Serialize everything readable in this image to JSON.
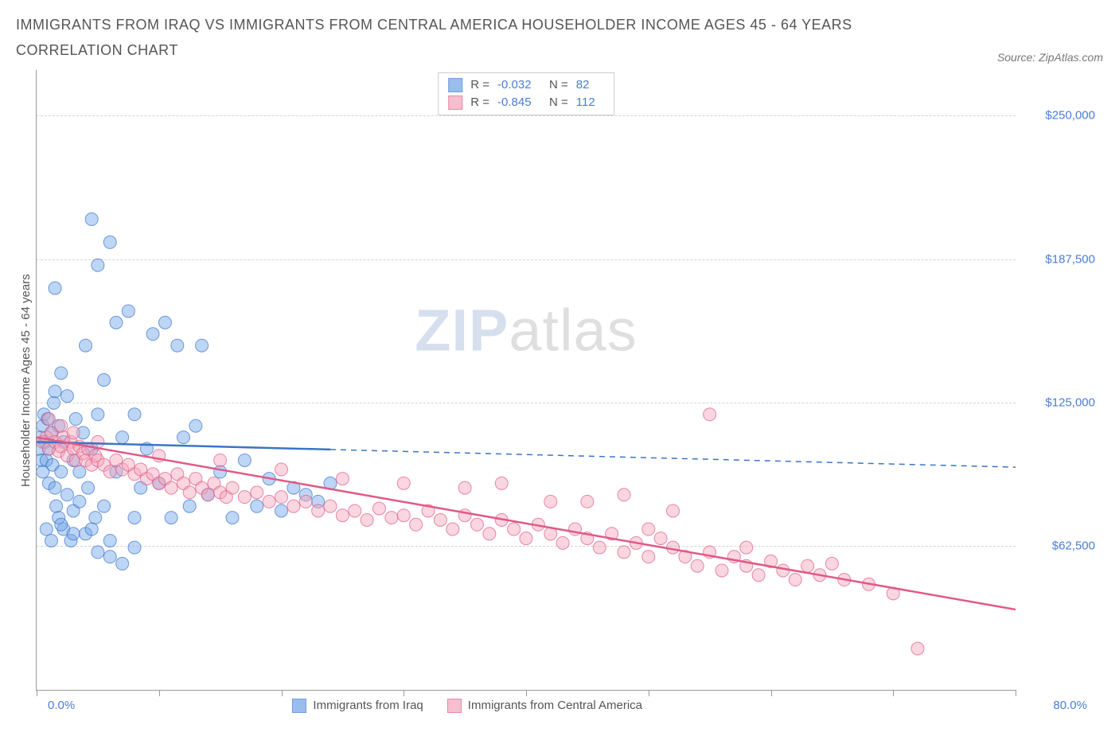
{
  "title": "IMMIGRANTS FROM IRAQ VS IMMIGRANTS FROM CENTRAL AMERICA HOUSEHOLDER INCOME AGES 45 - 64 YEARS CORRELATION CHART",
  "source": "Source: ZipAtlas.com",
  "ylabel": "Householder Income Ages 45 - 64 years",
  "watermark": {
    "bold": "ZIP",
    "rest": "atlas"
  },
  "chart": {
    "type": "scatter",
    "xlim": [
      0,
      80
    ],
    "ylim": [
      0,
      270000
    ],
    "xunit": "%",
    "yunit": "$",
    "xticks": [
      0,
      10,
      20,
      30,
      40,
      50,
      60,
      70,
      80
    ],
    "yticks": [
      62500,
      125000,
      187500,
      250000
    ],
    "ytick_labels": [
      "$62,500",
      "$125,000",
      "$187,500",
      "$250,000"
    ],
    "xmin_label": "0.0%",
    "xmax_label": "80.0%",
    "grid_color": "#d5d5d5",
    "axis_color": "#999999",
    "background": "#ffffff",
    "marker_radius": 8,
    "marker_opacity": 0.45,
    "series": [
      {
        "name": "Immigrants from Iraq",
        "color": "#6fa3e8",
        "stroke": "#3b74c9",
        "R": "-0.032",
        "N": "82",
        "trend": {
          "x1": 0,
          "y1": 108000,
          "x2": 80,
          "y2": 97000,
          "solid_until_x": 24,
          "width": 2.5
        },
        "points": [
          [
            0.2,
            105000
          ],
          [
            0.3,
            110000
          ],
          [
            0.4,
            100000
          ],
          [
            0.5,
            115000
          ],
          [
            0.5,
            95000
          ],
          [
            0.6,
            120000
          ],
          [
            0.7,
            108000
          ],
          [
            0.8,
            100000
          ],
          [
            0.9,
            118000
          ],
          [
            1.0,
            105000
          ],
          [
            1.0,
            90000
          ],
          [
            1.2,
            112000
          ],
          [
            1.3,
            98000
          ],
          [
            1.4,
            125000
          ],
          [
            1.5,
            88000
          ],
          [
            1.5,
            130000
          ],
          [
            1.6,
            80000
          ],
          [
            1.8,
            115000
          ],
          [
            1.8,
            75000
          ],
          [
            2.0,
            138000
          ],
          [
            2.0,
            95000
          ],
          [
            2.2,
            70000
          ],
          [
            2.2,
            108000
          ],
          [
            2.5,
            85000
          ],
          [
            2.5,
            128000
          ],
          [
            2.8,
            65000
          ],
          [
            3.0,
            100000
          ],
          [
            3.0,
            78000
          ],
          [
            3.2,
            118000
          ],
          [
            3.5,
            82000
          ],
          [
            3.5,
            95000
          ],
          [
            3.8,
            112000
          ],
          [
            4.0,
            68000
          ],
          [
            4.0,
            150000
          ],
          [
            4.2,
            88000
          ],
          [
            4.5,
            105000
          ],
          [
            4.5,
            205000
          ],
          [
            4.8,
            75000
          ],
          [
            5.0,
            120000
          ],
          [
            5.0,
            60000
          ],
          [
            5.5,
            135000
          ],
          [
            5.5,
            80000
          ],
          [
            6.0,
            65000
          ],
          [
            6.0,
            195000
          ],
          [
            6.5,
            95000
          ],
          [
            6.5,
            160000
          ],
          [
            7.0,
            110000
          ],
          [
            7.0,
            55000
          ],
          [
            7.5,
            165000
          ],
          [
            8.0,
            75000
          ],
          [
            8.0,
            120000
          ],
          [
            8.5,
            88000
          ],
          [
            9.0,
            105000
          ],
          [
            9.5,
            155000
          ],
          [
            10.0,
            90000
          ],
          [
            10.5,
            160000
          ],
          [
            11.0,
            75000
          ],
          [
            11.5,
            150000
          ],
          [
            12.0,
            110000
          ],
          [
            12.5,
            80000
          ],
          [
            13.0,
            115000
          ],
          [
            13.5,
            150000
          ],
          [
            14.0,
            85000
          ],
          [
            15.0,
            95000
          ],
          [
            16.0,
            75000
          ],
          [
            17.0,
            100000
          ],
          [
            18.0,
            80000
          ],
          [
            19.0,
            92000
          ],
          [
            20.0,
            78000
          ],
          [
            21.0,
            88000
          ],
          [
            22.0,
            85000
          ],
          [
            23.0,
            82000
          ],
          [
            24.0,
            90000
          ],
          [
            5.0,
            185000
          ],
          [
            1.5,
            175000
          ],
          [
            2.0,
            72000
          ],
          [
            3.0,
            68000
          ],
          [
            0.8,
            70000
          ],
          [
            1.2,
            65000
          ],
          [
            4.5,
            70000
          ],
          [
            6.0,
            58000
          ],
          [
            8.0,
            62000
          ]
        ]
      },
      {
        "name": "Immigrants from Central America",
        "color": "#f2a5bb",
        "stroke": "#e05a86",
        "R": "-0.845",
        "N": "112",
        "trend": {
          "x1": 0,
          "y1": 110000,
          "x2": 80,
          "y2": 35000,
          "solid_until_x": 80,
          "width": 2.5
        },
        "points": [
          [
            0.5,
            108000
          ],
          [
            0.8,
            110000
          ],
          [
            1.0,
            105000
          ],
          [
            1.2,
            112000
          ],
          [
            1.5,
            108000
          ],
          [
            1.8,
            104000
          ],
          [
            2.0,
            106000
          ],
          [
            2.2,
            110000
          ],
          [
            2.5,
            102000
          ],
          [
            2.8,
            108000
          ],
          [
            3.0,
            105000
          ],
          [
            3.2,
            100000
          ],
          [
            3.5,
            106000
          ],
          [
            3.8,
            103000
          ],
          [
            4.0,
            100000
          ],
          [
            4.2,
            105000
          ],
          [
            4.5,
            98000
          ],
          [
            4.8,
            102000
          ],
          [
            5.0,
            100000
          ],
          [
            5.5,
            98000
          ],
          [
            6.0,
            95000
          ],
          [
            6.5,
            100000
          ],
          [
            7.0,
            96000
          ],
          [
            7.5,
            98000
          ],
          [
            8.0,
            94000
          ],
          [
            8.5,
            96000
          ],
          [
            9.0,
            92000
          ],
          [
            9.5,
            94000
          ],
          [
            10.0,
            90000
          ],
          [
            10.5,
            92000
          ],
          [
            11.0,
            88000
          ],
          [
            11.5,
            94000
          ],
          [
            12.0,
            90000
          ],
          [
            12.5,
            86000
          ],
          [
            13.0,
            92000
          ],
          [
            13.5,
            88000
          ],
          [
            14.0,
            85000
          ],
          [
            14.5,
            90000
          ],
          [
            15.0,
            86000
          ],
          [
            15.5,
            84000
          ],
          [
            16.0,
            88000
          ],
          [
            17.0,
            84000
          ],
          [
            18.0,
            86000
          ],
          [
            19.0,
            82000
          ],
          [
            20.0,
            84000
          ],
          [
            21.0,
            80000
          ],
          [
            22.0,
            82000
          ],
          [
            23.0,
            78000
          ],
          [
            24.0,
            80000
          ],
          [
            25.0,
            76000
          ],
          [
            26.0,
            78000
          ],
          [
            27.0,
            74000
          ],
          [
            28.0,
            79000
          ],
          [
            29.0,
            75000
          ],
          [
            30.0,
            76000
          ],
          [
            31.0,
            72000
          ],
          [
            32.0,
            78000
          ],
          [
            33.0,
            74000
          ],
          [
            34.0,
            70000
          ],
          [
            35.0,
            76000
          ],
          [
            36.0,
            72000
          ],
          [
            37.0,
            68000
          ],
          [
            38.0,
            74000
          ],
          [
            39.0,
            70000
          ],
          [
            40.0,
            66000
          ],
          [
            41.0,
            72000
          ],
          [
            42.0,
            68000
          ],
          [
            43.0,
            64000
          ],
          [
            44.0,
            70000
          ],
          [
            45.0,
            66000
          ],
          [
            46.0,
            62000
          ],
          [
            47.0,
            68000
          ],
          [
            48.0,
            60000
          ],
          [
            49.0,
            64000
          ],
          [
            50.0,
            58000
          ],
          [
            51.0,
            66000
          ],
          [
            52.0,
            62000
          ],
          [
            53.0,
            58000
          ],
          [
            54.0,
            54000
          ],
          [
            55.0,
            60000
          ],
          [
            56.0,
            52000
          ],
          [
            57.0,
            58000
          ],
          [
            58.0,
            54000
          ],
          [
            59.0,
            50000
          ],
          [
            60.0,
            56000
          ],
          [
            61.0,
            52000
          ],
          [
            62.0,
            48000
          ],
          [
            63.0,
            54000
          ],
          [
            64.0,
            50000
          ],
          [
            66.0,
            48000
          ],
          [
            68.0,
            46000
          ],
          [
            70.0,
            42000
          ],
          [
            55.0,
            120000
          ],
          [
            48.0,
            85000
          ],
          [
            52.0,
            78000
          ],
          [
            45.0,
            82000
          ],
          [
            38.0,
            90000
          ],
          [
            42.0,
            82000
          ],
          [
            35.0,
            88000
          ],
          [
            30.0,
            90000
          ],
          [
            25.0,
            92000
          ],
          [
            20.0,
            96000
          ],
          [
            15.0,
            100000
          ],
          [
            10.0,
            102000
          ],
          [
            5.0,
            108000
          ],
          [
            3.0,
            112000
          ],
          [
            2.0,
            115000
          ],
          [
            1.0,
            118000
          ],
          [
            72.0,
            18000
          ],
          [
            65.0,
            55000
          ],
          [
            58.0,
            62000
          ],
          [
            50.0,
            70000
          ]
        ]
      }
    ]
  },
  "fonts": {
    "title_size": 18,
    "label_size": 15,
    "tick_size": 15
  },
  "colors": {
    "title": "#555555",
    "tick": "#4a7dd6",
    "source": "#777777"
  }
}
